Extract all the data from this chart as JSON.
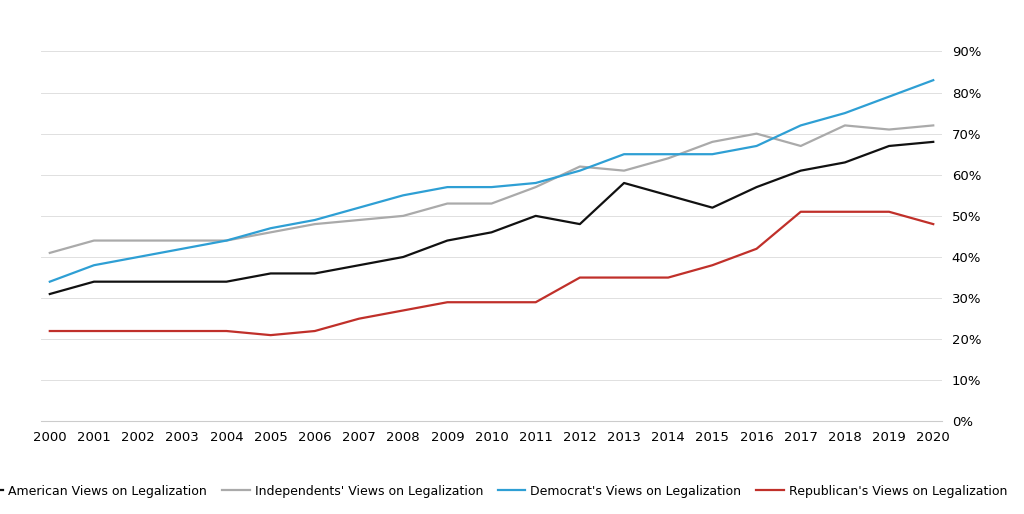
{
  "years": [
    2000,
    2001,
    2002,
    2003,
    2004,
    2005,
    2006,
    2007,
    2008,
    2009,
    2010,
    2011,
    2012,
    2013,
    2014,
    2015,
    2016,
    2017,
    2018,
    2019,
    2020
  ],
  "american": [
    0.31,
    0.34,
    0.34,
    0.34,
    0.34,
    0.36,
    0.36,
    0.38,
    0.4,
    0.44,
    0.46,
    0.5,
    0.48,
    0.58,
    0.55,
    0.52,
    0.57,
    0.61,
    0.63,
    0.67,
    0.68
  ],
  "independents": [
    0.41,
    0.44,
    0.44,
    0.44,
    0.44,
    0.46,
    0.48,
    0.49,
    0.5,
    0.53,
    0.53,
    0.57,
    0.62,
    0.61,
    0.64,
    0.68,
    0.7,
    0.67,
    0.72,
    0.71,
    0.72
  ],
  "democrats": [
    0.34,
    0.38,
    0.4,
    0.42,
    0.44,
    0.47,
    0.49,
    0.52,
    0.55,
    0.57,
    0.57,
    0.58,
    0.61,
    0.65,
    0.65,
    0.65,
    0.67,
    0.72,
    0.75,
    0.79,
    0.83
  ],
  "republicans": [
    0.22,
    0.22,
    0.22,
    0.22,
    0.22,
    0.21,
    0.22,
    0.25,
    0.27,
    0.29,
    0.29,
    0.29,
    0.35,
    0.35,
    0.35,
    0.38,
    0.42,
    0.51,
    0.51,
    0.51,
    0.48
  ],
  "colors": {
    "american": "#111111",
    "independents": "#aaaaaa",
    "democrats": "#2e9fd4",
    "republicans": "#c0302a"
  },
  "legend_labels": [
    "American Views on Legalization",
    "Independents' Views on Legalization",
    "Democrat's Views on Legalization",
    "Republican's Views on Legalization"
  ],
  "ylim": [
    0.0,
    0.9
  ],
  "yticks": [
    0.0,
    0.1,
    0.2,
    0.3,
    0.4,
    0.5,
    0.6,
    0.7,
    0.8,
    0.9
  ],
  "background_color": "#ffffff",
  "linewidth": 1.6
}
